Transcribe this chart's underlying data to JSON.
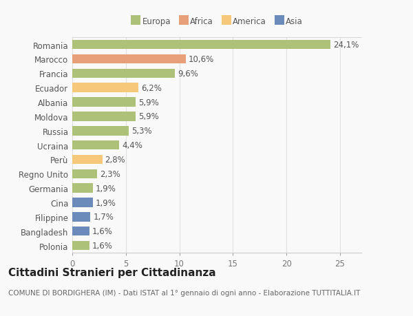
{
  "categories": [
    "Polonia",
    "Bangladesh",
    "Filippine",
    "Cina",
    "Germania",
    "Regno Unito",
    "Perù",
    "Ucraina",
    "Russia",
    "Moldova",
    "Albania",
    "Ecuador",
    "Francia",
    "Marocco",
    "Romania"
  ],
  "values": [
    1.6,
    1.6,
    1.7,
    1.9,
    1.9,
    2.3,
    2.8,
    4.4,
    5.3,
    5.9,
    5.9,
    6.2,
    9.6,
    10.6,
    24.1
  ],
  "labels": [
    "1,6%",
    "1,6%",
    "1,7%",
    "1,9%",
    "1,9%",
    "2,3%",
    "2,8%",
    "4,4%",
    "5,3%",
    "5,9%",
    "5,9%",
    "6,2%",
    "9,6%",
    "10,6%",
    "24,1%"
  ],
  "colors": [
    "#adc178",
    "#6b8cba",
    "#6b8cba",
    "#6b8cba",
    "#adc178",
    "#adc178",
    "#f5c87a",
    "#adc178",
    "#adc178",
    "#adc178",
    "#adc178",
    "#f5c87a",
    "#adc178",
    "#e8a07a",
    "#adc178"
  ],
  "legend": [
    {
      "label": "Europa",
      "color": "#adc178"
    },
    {
      "label": "Africa",
      "color": "#e8a07a"
    },
    {
      "label": "America",
      "color": "#f5c87a"
    },
    {
      "label": "Asia",
      "color": "#6b8cba"
    }
  ],
  "title": "Cittadini Stranieri per Cittadinanza",
  "subtitle": "COMUNE DI BORDIGHERA (IM) - Dati ISTAT al 1° gennaio di ogni anno - Elaborazione TUTTITALIA.IT",
  "xlim": [
    0,
    27
  ],
  "xticks": [
    0,
    5,
    10,
    15,
    20,
    25
  ],
  "background_color": "#f9f9f9",
  "grid_color": "#e0e0e0",
  "bar_height": 0.65,
  "label_fontsize": 8.5,
  "tick_fontsize": 8.5,
  "title_fontsize": 11,
  "subtitle_fontsize": 7.5
}
